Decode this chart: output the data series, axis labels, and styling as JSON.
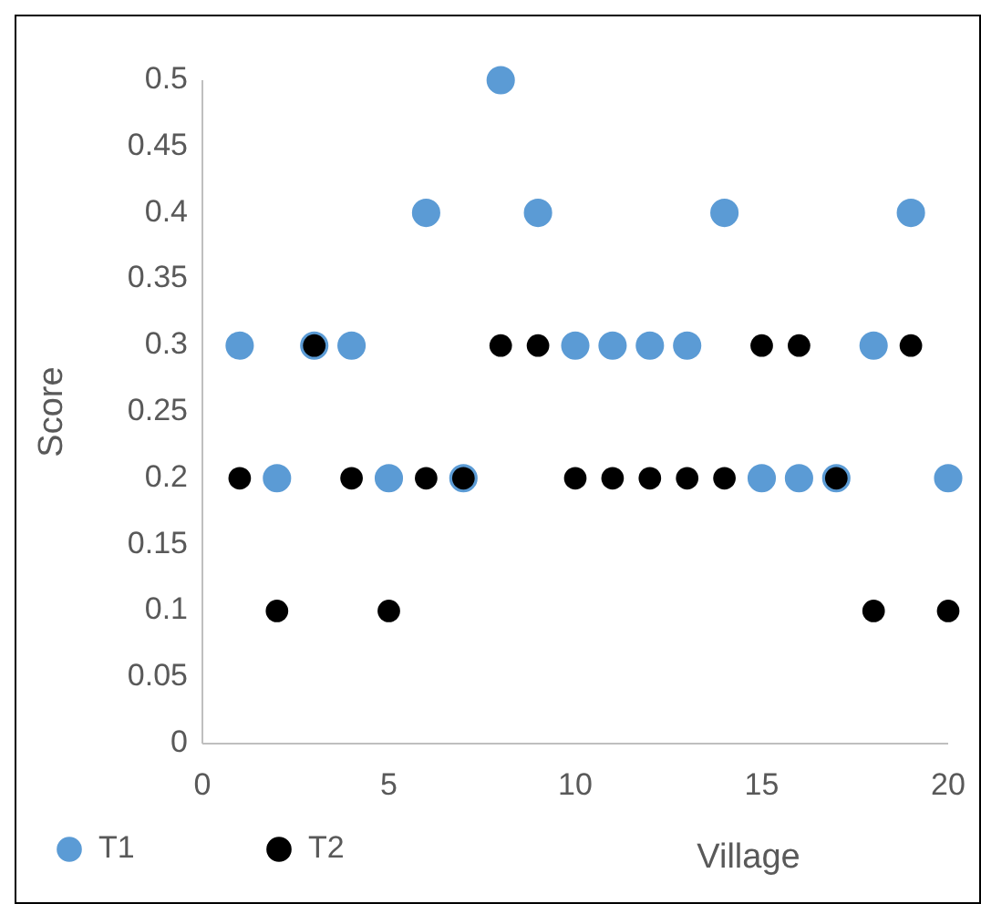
{
  "chart_data": {
    "type": "scatter",
    "xlabel": "Village",
    "ylabel": "Score",
    "x": [
      1,
      2,
      3,
      4,
      5,
      6,
      7,
      8,
      9,
      10,
      11,
      12,
      13,
      14,
      15,
      16,
      17,
      18,
      19,
      20
    ],
    "series": [
      {
        "name": "T1",
        "color": "#5b9bd5",
        "values": [
          0.3,
          0.2,
          0.3,
          0.3,
          0.2,
          0.4,
          0.2,
          0.5,
          0.4,
          0.3,
          0.3,
          0.3,
          0.3,
          0.4,
          0.2,
          0.2,
          0.2,
          0.3,
          0.4,
          0.2
        ]
      },
      {
        "name": "T2",
        "color": "#000000",
        "values": [
          0.2,
          0.1,
          0.3,
          0.2,
          0.1,
          0.2,
          0.2,
          0.3,
          0.3,
          0.2,
          0.2,
          0.2,
          0.2,
          0.2,
          0.3,
          0.3,
          0.2,
          0.1,
          0.3,
          0.1
        ]
      }
    ],
    "xlim": [
      0,
      20
    ],
    "xticks": [
      0,
      5,
      10,
      15,
      20
    ],
    "ylim": [
      0,
      0.5
    ],
    "yticks": [
      0,
      {
        "value": 0.05,
        "label": "0.05"
      },
      {
        "value": 0.1,
        "label": "0.1"
      },
      {
        "value": 0.15,
        "label": "0.15"
      },
      {
        "value": 0.2,
        "label": "0.2"
      },
      {
        "value": 0.25,
        "label": "0.25"
      },
      {
        "value": 0.3,
        "label": "0.3"
      },
      {
        "value": 0.35,
        "label": "0.35"
      },
      {
        "value": 0.4,
        "label": "0.4"
      },
      {
        "value": 0.45,
        "label": "0.45"
      },
      {
        "value": 0.5,
        "label": "0.5"
      }
    ],
    "grid": false,
    "legend": "bottom left",
    "marker": "circle"
  }
}
